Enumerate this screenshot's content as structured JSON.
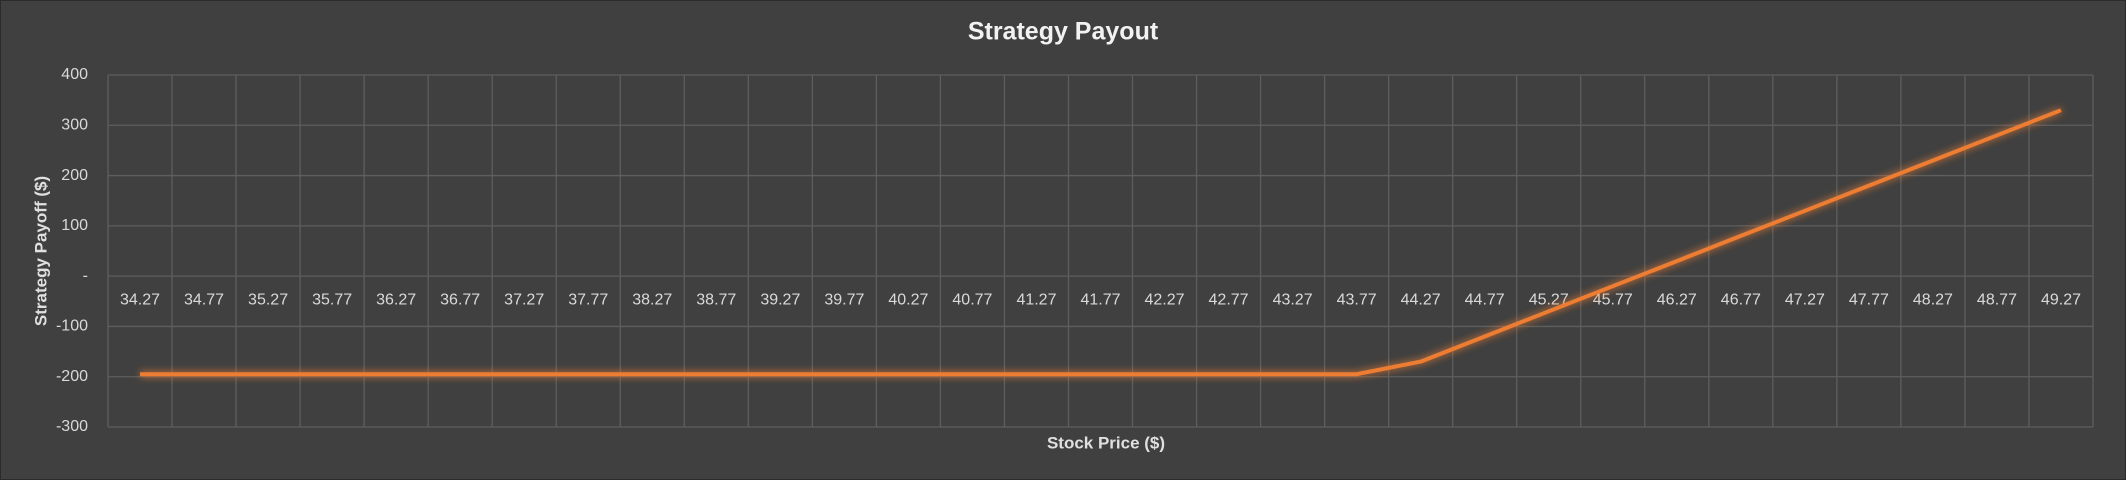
{
  "chart_data": {
    "type": "line",
    "title": "Strategy Payout",
    "x_label": "Stock Price ($)",
    "y_label": "Strategy Payoff ($)",
    "categories": [
      "34.27",
      "34.77",
      "35.27",
      "35.77",
      "36.27",
      "36.77",
      "37.27",
      "37.77",
      "38.27",
      "38.77",
      "39.27",
      "39.77",
      "40.27",
      "40.77",
      "41.27",
      "41.77",
      "42.27",
      "42.77",
      "43.27",
      "43.77",
      "44.27",
      "44.77",
      "45.27",
      "45.77",
      "46.27",
      "46.77",
      "47.27",
      "47.77",
      "48.27",
      "48.77",
      "49.27"
    ],
    "values": [
      -195,
      -195,
      -195,
      -195,
      -195,
      -195,
      -195,
      -195,
      -195,
      -195,
      -195,
      -195,
      -195,
      -195,
      -195,
      -195,
      -195,
      -195,
      -195,
      -195,
      -170,
      -120,
      -70,
      -20,
      30,
      80,
      130,
      180,
      230,
      280,
      330
    ],
    "color": "#ed7d31",
    "ylim": [
      -300,
      400
    ],
    "yticks": [
      -300,
      -200,
      -100,
      {
        "value": 0,
        "label": "-"
      },
      100,
      200,
      300,
      400
    ],
    "grid": true
  }
}
